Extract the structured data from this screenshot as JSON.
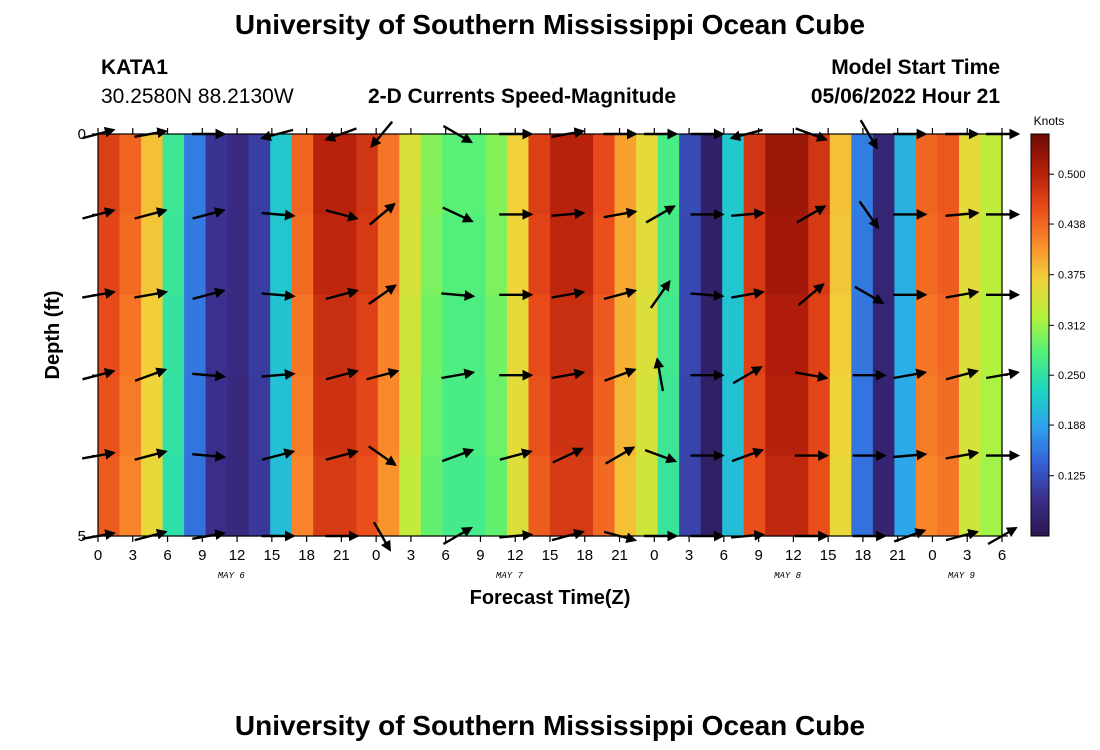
{
  "header": {
    "title": "University of Southern Mississippi Ocean Cube",
    "station_id": "KATA1",
    "station_coords": "30.2580N  88.2130W",
    "chart_title": "2-D Currents Speed-Magnitude",
    "model_label": "Model Start Time",
    "model_time": "05/06/2022 Hour 21"
  },
  "footer": {
    "title": "University of Southern Mississippi Ocean Cube"
  },
  "colors": {
    "colormap": [
      "#2b1650",
      "#3b2e8a",
      "#3561d8",
      "#2ea3ee",
      "#1cd6c0",
      "#52f07a",
      "#b5f23c",
      "#f1d33a",
      "#fb8a2c",
      "#e84a1a",
      "#b31e0a",
      "#6b0a04"
    ],
    "arrow": "#000000"
  },
  "chart_data": {
    "type": "heatmap",
    "title": "2-D Currents Speed-Magnitude",
    "xlabel": "Forecast Time(Z)",
    "ylabel": "Depth (ft)",
    "x_hours_from_start": [
      0,
      3,
      6,
      9,
      12,
      15,
      18,
      21,
      24,
      27,
      30,
      33,
      36,
      39,
      42,
      45,
      48,
      51,
      54,
      57,
      60,
      63,
      66,
      69,
      72,
      75,
      78
    ],
    "x_tick_labels": [
      "0",
      "3",
      "6",
      "9",
      "12",
      "15",
      "18",
      "21",
      "0",
      "3",
      "6",
      "9",
      "12",
      "15",
      "18",
      "21",
      "0",
      "3",
      "6",
      "9",
      "12",
      "15",
      "18",
      "21",
      "0",
      "3",
      "6"
    ],
    "date_labels": [
      {
        "label": "MAY 6",
        "hour": 11.5
      },
      {
        "label": "MAY 7",
        "hour": 35.5
      },
      {
        "label": "MAY 8",
        "hour": 59.5
      },
      {
        "label": "MAY 9",
        "hour": 74.5
      }
    ],
    "y_tick_labels": [
      "0",
      "5"
    ],
    "ylim": [
      0,
      5
    ],
    "depths_ft": [
      0,
      1,
      2,
      3,
      4,
      5
    ],
    "colorbar": {
      "label": "Knots",
      "range": [
        0.05,
        0.55
      ],
      "ticks": [
        "0.125",
        "0.188",
        "0.250",
        "0.312",
        "0.375",
        "0.438",
        "0.500"
      ],
      "tick_values": [
        0.125,
        0.188,
        0.25,
        0.312,
        0.375,
        0.438,
        0.5
      ]
    },
    "speed_knots_time_profile": [
      0.47,
      0.44,
      0.38,
      0.26,
      0.16,
      0.1,
      0.09,
      0.11,
      0.22,
      0.44,
      0.5,
      0.5,
      0.48,
      0.43,
      0.35,
      0.3,
      0.28,
      0.28,
      0.3,
      0.37,
      0.47,
      0.5,
      0.5,
      0.46,
      0.4,
      0.36,
      0.27,
      0.12,
      0.07,
      0.22,
      0.48,
      0.52,
      0.52,
      0.48,
      0.38,
      0.16,
      0.08,
      0.2,
      0.44,
      0.45,
      0.36,
      0.33
    ],
    "arrow_hours": [
      0,
      4.5,
      9.5,
      15.5,
      21,
      24.5,
      31,
      36,
      40.5,
      45,
      48.5,
      52.5,
      56,
      61.5,
      66.5,
      70,
      74.5,
      78
    ],
    "arrow_directions_deg": [
      [
        75,
        80,
        90,
        255,
        250,
        220,
        120,
        90,
        80,
        90,
        90,
        90,
        255,
        110,
        150,
        90,
        90,
        90
      ],
      [
        75,
        75,
        75,
        95,
        105,
        50,
        115,
        90,
        85,
        80,
        60,
        90,
        85,
        60,
        145,
        90,
        85,
        90
      ],
      [
        80,
        80,
        75,
        95,
        75,
        55,
        95,
        90,
        80,
        75,
        35,
        95,
        80,
        50,
        120,
        90,
        80,
        90
      ],
      [
        75,
        70,
        95,
        85,
        75,
        75,
        80,
        90,
        80,
        70,
        350,
        90,
        60,
        100,
        90,
        80,
        75,
        80
      ],
      [
        80,
        75,
        95,
        75,
        75,
        125,
        70,
        75,
        65,
        60,
        110,
        90,
        70,
        90,
        90,
        85,
        80,
        90
      ],
      [
        80,
        75,
        80,
        90,
        90,
        150,
        60,
        85,
        75,
        105,
        90,
        90,
        85,
        90,
        90,
        70,
        75,
        60
      ]
    ]
  }
}
